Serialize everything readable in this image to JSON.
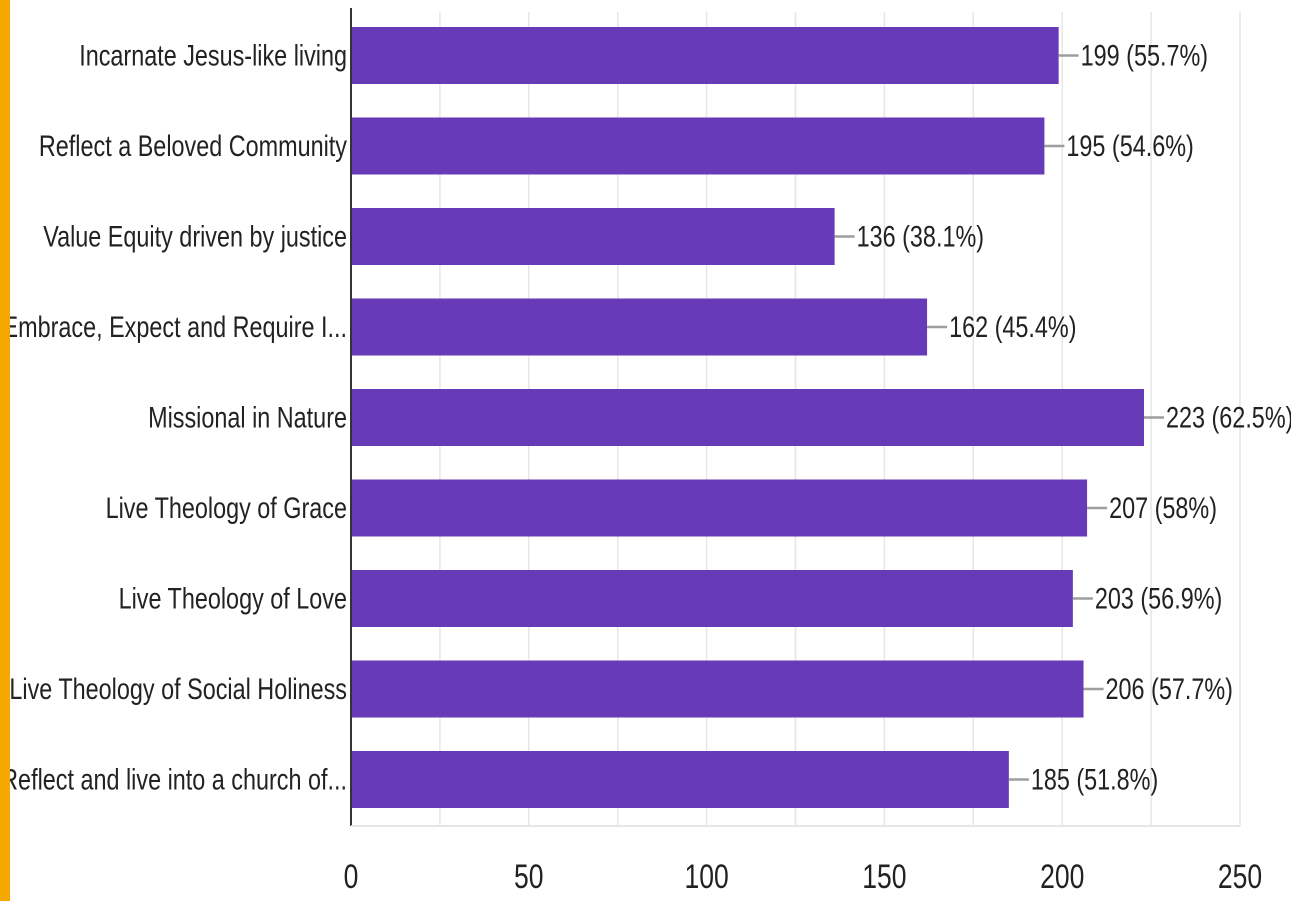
{
  "colors": {
    "bar": "#673ab7",
    "accent": "#f5a800",
    "grid": "#e6e6e6",
    "axis": "#333333",
    "leader": "#9e9e9e",
    "text": "#222222"
  },
  "chart_data": {
    "type": "bar",
    "orientation": "horizontal",
    "title": "",
    "xlabel": "",
    "ylabel": "",
    "xlim": [
      0,
      250
    ],
    "x_ticks": [
      "0",
      "50",
      "100",
      "150",
      "200",
      "250"
    ],
    "grid": true,
    "categories": [
      "Incarnate Jesus-like living",
      "Reflect a Beloved Community",
      "Value Equity driven by justice",
      "Embrace, Expect and Require I...",
      "Missional in Nature",
      "Live Theology of Grace",
      "Live Theology of Love",
      "Live Theology of Social Holiness",
      "Reflect and live into a church of..."
    ],
    "values": [
      199,
      195,
      136,
      162,
      223,
      207,
      203,
      206,
      185
    ],
    "value_labels": [
      "199 (55.7%)",
      "195 (54.6%)",
      "136 (38.1%)",
      "162 (45.4%)",
      "223 (62.5%)",
      "207 (58%)",
      "203 (56.9%)",
      "206 (57.7%)",
      "185 (51.8%)"
    ]
  }
}
